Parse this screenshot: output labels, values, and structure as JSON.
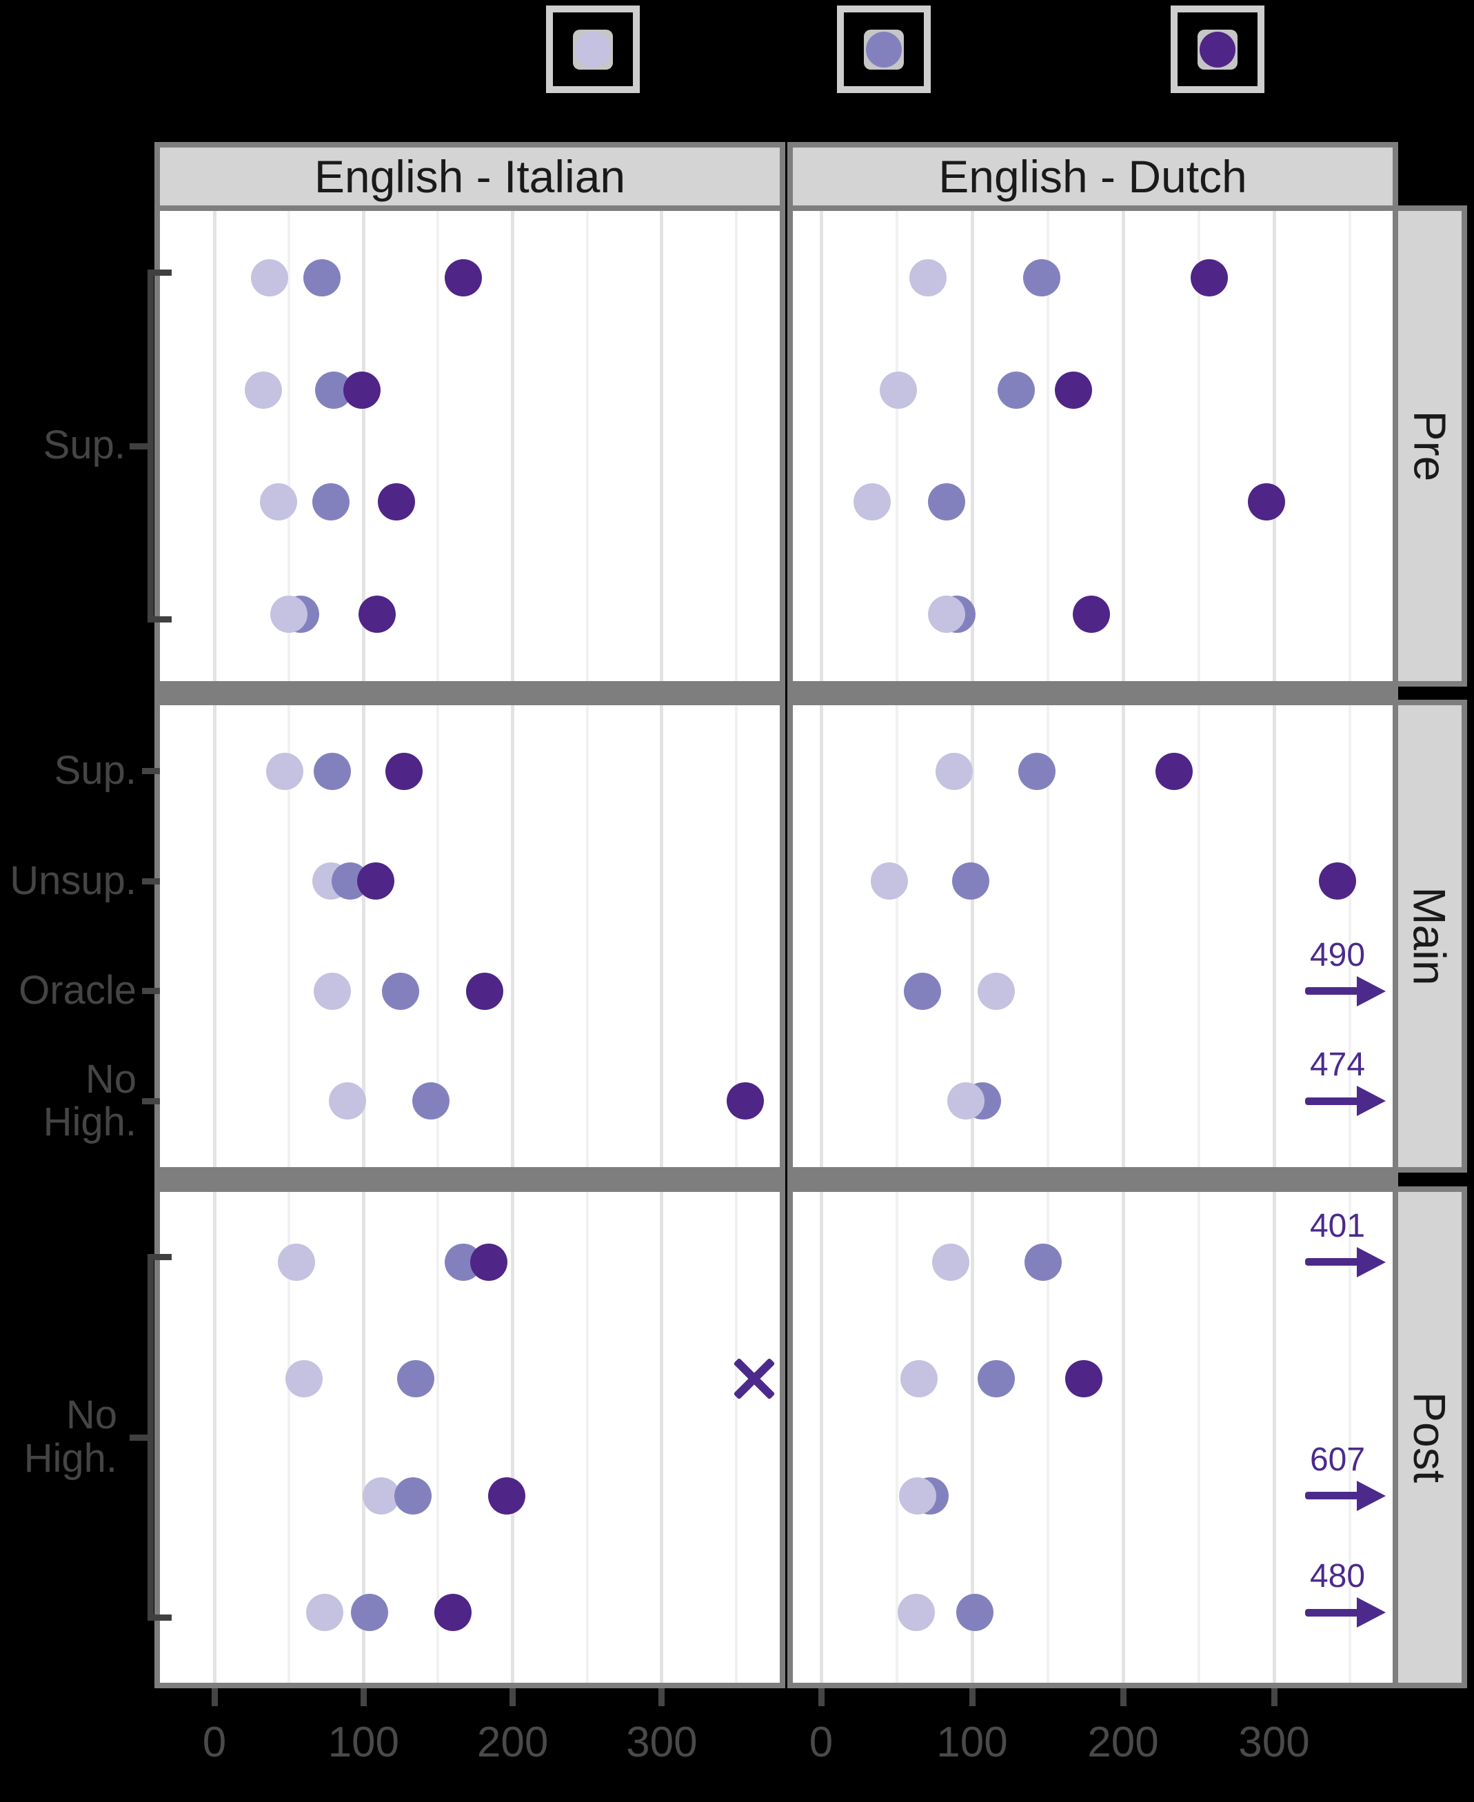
{
  "legend": {
    "keys": [
      {
        "name": "light-purple",
        "color": "#c4c2e0"
      },
      {
        "name": "medium-purple",
        "color": "#8381bd"
      },
      {
        "name": "dark-purple",
        "color": "#4f2588"
      }
    ]
  },
  "chart_data": {
    "type": "scatter",
    "facet_columns": [
      {
        "label": "English - Italian"
      },
      {
        "label": "English - Dutch"
      }
    ],
    "facet_rows": [
      {
        "label": "Pre"
      },
      {
        "label": "Main"
      },
      {
        "label": "Post"
      }
    ],
    "x_axis": {
      "ticks": [
        0,
        100,
        200,
        300
      ],
      "minor_gridlines": [
        50,
        150,
        250,
        350
      ],
      "domain": [
        -33,
        376
      ]
    },
    "series": [
      {
        "id": "light",
        "color": "#c4c2e0"
      },
      {
        "id": "medium",
        "color": "#8381bd"
      },
      {
        "id": "dark",
        "color": "#4f2588"
      }
    ],
    "y_annotations": {
      "pre": {
        "type": "bracket",
        "label": "Sup."
      },
      "main": {
        "type": "labels",
        "labels": [
          "Sup.",
          "Unsup.",
          "Oracle",
          "No High."
        ]
      },
      "post": {
        "type": "bracket",
        "label": "No High."
      }
    },
    "cells": [
      {
        "row": "Pre",
        "column": "English - Italian",
        "groups": [
          [
            {
              "series": "light",
              "value": 37
            },
            {
              "series": "medium",
              "value": 72
            },
            {
              "series": "dark",
              "value": 167
            }
          ],
          [
            {
              "series": "light",
              "value": 33
            },
            {
              "series": "medium",
              "value": 80
            },
            {
              "series": "dark",
              "value": 99
            }
          ],
          [
            {
              "series": "light",
              "value": 43
            },
            {
              "series": "medium",
              "value": 78
            },
            {
              "series": "dark",
              "value": 122
            }
          ],
          [
            {
              "series": "medium",
              "value": 58
            },
            {
              "series": "light",
              "value": 50
            },
            {
              "series": "dark",
              "value": 109
            }
          ]
        ]
      },
      {
        "row": "Pre",
        "column": "English - Dutch",
        "groups": [
          [
            {
              "series": "light",
              "value": 71
            },
            {
              "series": "medium",
              "value": 146
            },
            {
              "series": "dark",
              "value": 257
            }
          ],
          [
            {
              "series": "light",
              "value": 51
            },
            {
              "series": "medium",
              "value": 129
            },
            {
              "series": "dark",
              "value": 167
            }
          ],
          [
            {
              "series": "light",
              "value": 34
            },
            {
              "series": "medium",
              "value": 83
            },
            {
              "series": "dark",
              "value": 295
            }
          ],
          [
            {
              "series": "medium",
              "value": 90
            },
            {
              "series": "light",
              "value": 83
            },
            {
              "series": "dark",
              "value": 179
            }
          ]
        ]
      },
      {
        "row": "Main",
        "column": "English - Italian",
        "groups": [
          [
            {
              "series": "light",
              "value": 47
            },
            {
              "series": "medium",
              "value": 79
            },
            {
              "series": "dark",
              "value": 127
            }
          ],
          [
            {
              "series": "light",
              "value": 78
            },
            {
              "series": "medium",
              "value": 91
            },
            {
              "series": "dark",
              "value": 108
            }
          ],
          [
            {
              "series": "light",
              "value": 79
            },
            {
              "series": "medium",
              "value": 125
            },
            {
              "series": "dark",
              "value": 181
            }
          ],
          [
            {
              "series": "light",
              "value": 89
            },
            {
              "series": "medium",
              "value": 145
            },
            {
              "series": "dark",
              "value": 356
            }
          ]
        ]
      },
      {
        "row": "Main",
        "column": "English - Dutch",
        "groups": [
          [
            {
              "series": "light",
              "value": 88
            },
            {
              "series": "medium",
              "value": 143
            },
            {
              "series": "dark",
              "value": 234
            }
          ],
          [
            {
              "series": "light",
              "value": 45
            },
            {
              "series": "medium",
              "value": 99
            },
            {
              "series": "dark",
              "value": 342
            }
          ],
          [
            {
              "series": "medium",
              "value": 67
            },
            {
              "series": "light",
              "value": 116
            },
            {
              "series": "dark",
              "value": 490,
              "marker": "arrow"
            }
          ],
          [
            {
              "series": "medium",
              "value": 107
            },
            {
              "series": "light",
              "value": 96
            },
            {
              "series": "dark",
              "value": 474,
              "marker": "arrow"
            }
          ]
        ]
      },
      {
        "row": "Post",
        "column": "English - Italian",
        "groups": [
          [
            {
              "series": "light",
              "value": 55
            },
            {
              "series": "medium",
              "value": 167
            },
            {
              "series": "dark",
              "value": 184
            }
          ],
          [
            {
              "series": "light",
              "value": 60
            },
            {
              "series": "medium",
              "value": 135
            },
            {
              "series": "dark",
              "value": 362,
              "marker": "x"
            }
          ],
          [
            {
              "series": "light",
              "value": 112
            },
            {
              "series": "medium",
              "value": 133
            },
            {
              "series": "dark",
              "value": 196
            }
          ],
          [
            {
              "series": "light",
              "value": 74
            },
            {
              "series": "medium",
              "value": 104
            },
            {
              "series": "dark",
              "value": 160
            }
          ]
        ]
      },
      {
        "row": "Post",
        "column": "English - Dutch",
        "groups": [
          [
            {
              "series": "light",
              "value": 86
            },
            {
              "series": "medium",
              "value": 147
            },
            {
              "series": "dark",
              "value": 401,
              "marker": "arrow"
            }
          ],
          [
            {
              "series": "light",
              "value": 65
            },
            {
              "series": "medium",
              "value": 116
            },
            {
              "series": "dark",
              "value": 174
            }
          ],
          [
            {
              "series": "medium",
              "value": 72
            },
            {
              "series": "light",
              "value": 64
            },
            {
              "series": "dark",
              "value": 607,
              "marker": "arrow"
            }
          ],
          [
            {
              "series": "light",
              "value": 63
            },
            {
              "series": "medium",
              "value": 102
            },
            {
              "series": "dark",
              "value": 480,
              "marker": "arrow"
            }
          ]
        ]
      }
    ]
  }
}
